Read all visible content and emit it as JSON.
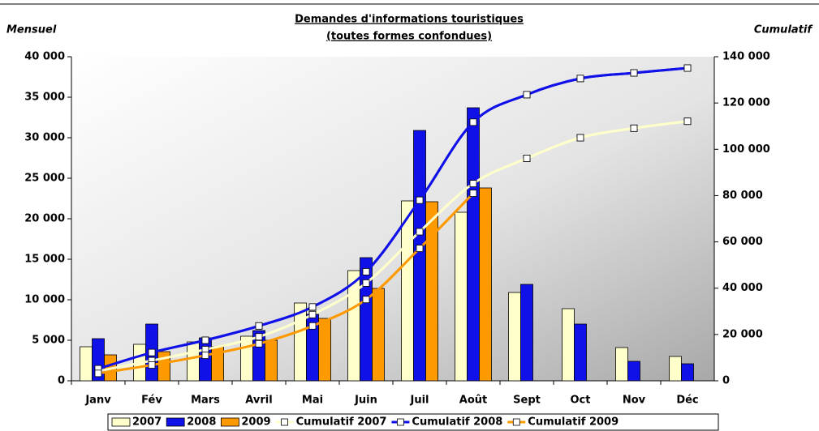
{
  "chart_data": {
    "type": "bar_line",
    "title": "Demandes d'informations touristiques",
    "subtitle": "(toutes formes confondues)",
    "y_label": "Mensuel",
    "y2_label": "Cumulatif",
    "categories": [
      "Janv",
      "Fév",
      "Mars",
      "Avril",
      "Mai",
      "Juin",
      "Juil",
      "Août",
      "Sept",
      "Oct",
      "Nov",
      "Déc"
    ],
    "series": [
      {
        "name": "2007",
        "kind": "bar",
        "color": "#ffffcc",
        "values": [
          4200,
          4500,
          4800,
          5500,
          9600,
          13600,
          22200,
          20800,
          10900,
          8900,
          4100,
          3000
        ]
      },
      {
        "name": "2008",
        "kind": "bar",
        "color": "#1010e8",
        "values": [
          5200,
          7000,
          5300,
          6200,
          8200,
          15200,
          30900,
          33700,
          11900,
          7000,
          2400,
          2100
        ]
      },
      {
        "name": "2009",
        "kind": "bar",
        "color": "#ff9900",
        "values": [
          3200,
          3600,
          4200,
          5000,
          7700,
          11400,
          22100,
          23800,
          null,
          null,
          null,
          null
        ]
      },
      {
        "name": "Cumulatif 2007",
        "kind": "line",
        "axis": "y2",
        "color": "#ffffcc",
        "values": [
          4200,
          8700,
          13500,
          19000,
          28600,
          42200,
          64400,
          85200,
          96100,
          105000,
          109100,
          112100
        ]
      },
      {
        "name": "Cumulatif 2008",
        "kind": "line",
        "axis": "y2",
        "color": "#1010e8",
        "values": [
          5200,
          12200,
          17500,
          23700,
          31900,
          47100,
          78000,
          111700,
          123600,
          130600,
          133000,
          135100
        ]
      },
      {
        "name": "Cumulatif 2009",
        "kind": "line",
        "axis": "y2",
        "color": "#ff9900",
        "values": [
          3200,
          6800,
          11000,
          16000,
          23700,
          35100,
          57200,
          81000,
          null,
          null,
          null,
          null
        ]
      }
    ],
    "ylim": [
      0,
      40000
    ],
    "yticks": [
      0,
      {
        "value": 5000,
        "label": "5 000"
      },
      {
        "value": 10000,
        "label": "10 000"
      },
      {
        "value": 15000,
        "label": "15 000"
      },
      {
        "value": 20000,
        "label": "20 000"
      },
      {
        "value": 25000,
        "label": "25 000"
      },
      {
        "value": 30000,
        "label": "30 000"
      },
      {
        "value": 35000,
        "label": "35 000"
      },
      {
        "value": 40000,
        "label": "40 000"
      }
    ],
    "y2lim": [
      0,
      140000
    ],
    "y2ticks": [
      0,
      {
        "value": 20000,
        "label": "20 000"
      },
      {
        "value": 40000,
        "label": "40 000"
      },
      {
        "value": 60000,
        "label": "60 000"
      },
      {
        "value": 80000,
        "label": "80 000"
      },
      {
        "value": 100000,
        "label": "100 000"
      },
      {
        "value": 120000,
        "label": "120 000"
      },
      {
        "value": 140000,
        "label": "140 000"
      }
    ],
    "grid": false,
    "legend": "bottom"
  }
}
